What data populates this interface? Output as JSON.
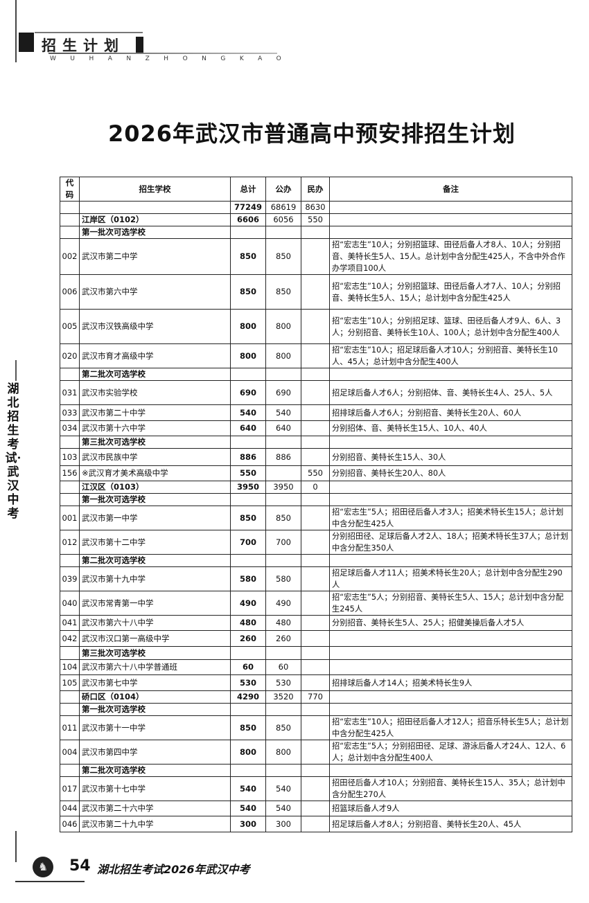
{
  "header": {
    "section": "招生计划",
    "subtitle": "WUHANZHONGKAO"
  },
  "side_text": "湖北招生考试·武汉中考",
  "title": "2026年武汉市普通高中预安排招生计划",
  "table": {
    "columns": [
      "代码",
      "招生学校",
      "总计",
      "公办",
      "民办",
      "备注"
    ],
    "rows": [
      {
        "type": "total",
        "code": "",
        "name": "",
        "total": "77249",
        "public": "68619",
        "private": "8630",
        "note": ""
      },
      {
        "type": "district",
        "code": "",
        "name": "江岸区（0102）",
        "total": "6606",
        "public": "6056",
        "private": "550",
        "note": ""
      },
      {
        "type": "batch",
        "code": "",
        "name": "第一批次可选学校",
        "total": "",
        "public": "",
        "private": "",
        "note": ""
      },
      {
        "type": "school",
        "code": "002",
        "name": "武汉市第二中学",
        "total": "850",
        "public": "850",
        "private": "",
        "note": "招“宏志生”10人；分别招篮球、田径后备人才8人、10人；分别招音、美特长生5人、15人。总计划中含分配生425人，不含中外合作办学项目100人"
      },
      {
        "type": "school",
        "code": "006",
        "name": "武汉市第六中学",
        "total": "850",
        "public": "850",
        "private": "",
        "note": "招“宏志生”10人；分别招篮球、田径后备人才7人、10人；分别招音、美特长生5人、15人；总计划中含分配生425人"
      },
      {
        "type": "school",
        "code": "005",
        "name": "武汉市汉铁高级中学",
        "total": "800",
        "public": "800",
        "private": "",
        "note": "招“宏志生”10人；分别招足球、篮球、田径后备人才9人、6人、3人；分别招音、美特长生10人、100人；总计划中含分配生400人"
      },
      {
        "type": "school",
        "code": "020",
        "name": "武汉市育才高级中学",
        "total": "800",
        "public": "800",
        "private": "",
        "note": "招“宏志生”10人；招足球后备人才10人；分别招音、美特长生10人、45人；总计划中含分配生400人"
      },
      {
        "type": "batch",
        "code": "",
        "name": "第二批次可选学校",
        "total": "",
        "public": "",
        "private": "",
        "note": ""
      },
      {
        "type": "school",
        "code": "031",
        "name": "武汉市实验学校",
        "total": "690",
        "public": "690",
        "private": "",
        "note": "招足球后备人才6人；分别招体、音、美特长生4人、25人、5人"
      },
      {
        "type": "school",
        "code": "033",
        "name": "武汉市第二十中学",
        "total": "540",
        "public": "540",
        "private": "",
        "note": "招排球后备人才6人；分别招音、美特长生20人、60人"
      },
      {
        "type": "school",
        "code": "034",
        "name": "武汉市第十六中学",
        "total": "640",
        "public": "640",
        "private": "",
        "note": "分别招体、音、美特长生15人、10人、40人"
      },
      {
        "type": "batch",
        "code": "",
        "name": "第三批次可选学校",
        "total": "",
        "public": "",
        "private": "",
        "note": ""
      },
      {
        "type": "school",
        "code": "103",
        "name": "武汉市民族中学",
        "total": "886",
        "public": "886",
        "private": "",
        "note": "分别招音、美特长生15人、30人"
      },
      {
        "type": "school",
        "code": "156",
        "name": "※武汉育才美术高级中学",
        "total": "550",
        "public": "",
        "private": "550",
        "note": "分别招音、美特长生20人、80人"
      },
      {
        "type": "district",
        "code": "",
        "name": "江汉区（0103）",
        "total": "3950",
        "public": "3950",
        "private": "0",
        "note": ""
      },
      {
        "type": "batch",
        "code": "",
        "name": "第一批次可选学校",
        "total": "",
        "public": "",
        "private": "",
        "note": ""
      },
      {
        "type": "school",
        "code": "001",
        "name": "武汉市第一中学",
        "total": "850",
        "public": "850",
        "private": "",
        "note": "招“宏志生”5人；招田径后备人才3人；招美术特长生15人；总计划中含分配生425人"
      },
      {
        "type": "school",
        "code": "012",
        "name": "武汉市第十二中学",
        "total": "700",
        "public": "700",
        "private": "",
        "note": "分别招田径、足球后备人才2人、18人；招美术特长生37人；总计划中含分配生350人"
      },
      {
        "type": "batch",
        "code": "",
        "name": "第二批次可选学校",
        "total": "",
        "public": "",
        "private": "",
        "note": ""
      },
      {
        "type": "school",
        "code": "039",
        "name": "武汉市第十九中学",
        "total": "580",
        "public": "580",
        "private": "",
        "note": "招足球后备人才11人；招美术特长生20人；总计划中含分配生290人"
      },
      {
        "type": "school",
        "code": "040",
        "name": "武汉市常青第一中学",
        "total": "490",
        "public": "490",
        "private": "",
        "note": "招“宏志生”5人；分别招音、美特长生5人、15人；总计划中含分配生245人"
      },
      {
        "type": "school",
        "code": "041",
        "name": "武汉市第六十八中学",
        "total": "480",
        "public": "480",
        "private": "",
        "note": "分别招音、美特长生5人、25人；招健美操后备人才5人"
      },
      {
        "type": "school",
        "code": "042",
        "name": "武汉市汉口第一高级中学",
        "total": "260",
        "public": "260",
        "private": "",
        "note": ""
      },
      {
        "type": "batch",
        "code": "",
        "name": "第三批次可选学校",
        "total": "",
        "public": "",
        "private": "",
        "note": ""
      },
      {
        "type": "school",
        "code": "104",
        "name": "武汉市第六十八中学普通班",
        "total": "60",
        "public": "60",
        "private": "",
        "note": ""
      },
      {
        "type": "school",
        "code": "105",
        "name": "武汉市第七中学",
        "total": "530",
        "public": "530",
        "private": "",
        "note": "招排球后备人才14人；招美术特长生9人"
      },
      {
        "type": "district",
        "code": "",
        "name": "硚口区（0104）",
        "total": "4290",
        "public": "3520",
        "private": "770",
        "note": ""
      },
      {
        "type": "batch",
        "code": "",
        "name": "第一批次可选学校",
        "total": "",
        "public": "",
        "private": "",
        "note": ""
      },
      {
        "type": "school",
        "code": "011",
        "name": "武汉市第十一中学",
        "total": "850",
        "public": "850",
        "private": "",
        "note": "招“宏志生”10人；招田径后备人才12人；招音乐特长生5人；总计划中含分配生425人"
      },
      {
        "type": "school",
        "code": "004",
        "name": "武汉市第四中学",
        "total": "800",
        "public": "800",
        "private": "",
        "note": "招“宏志生”5人；分别招田径、足球、游泳后备人才24人、12人、6人；总计划中含分配生400人"
      },
      {
        "type": "batch",
        "code": "",
        "name": "第二批次可选学校",
        "total": "",
        "public": "",
        "private": "",
        "note": ""
      },
      {
        "type": "school",
        "code": "017",
        "name": "武汉市第十七中学",
        "total": "540",
        "public": "540",
        "private": "",
        "note": "招田径后备人才10人；分别招音、美特长生15人、35人；总计划中含分配生270人"
      },
      {
        "type": "school",
        "code": "044",
        "name": "武汉市第二十六中学",
        "total": "540",
        "public": "540",
        "private": "",
        "note": "招篮球后备人才9人"
      },
      {
        "type": "school",
        "code": "046",
        "name": "武汉市第二十九中学",
        "total": "300",
        "public": "300",
        "private": "",
        "note": "招足球后备人才8人；分别招音、美特长生20人、45人"
      }
    ]
  },
  "footer": {
    "page_number": "54",
    "publication": "湖北招生考试2026年武汉中考"
  }
}
